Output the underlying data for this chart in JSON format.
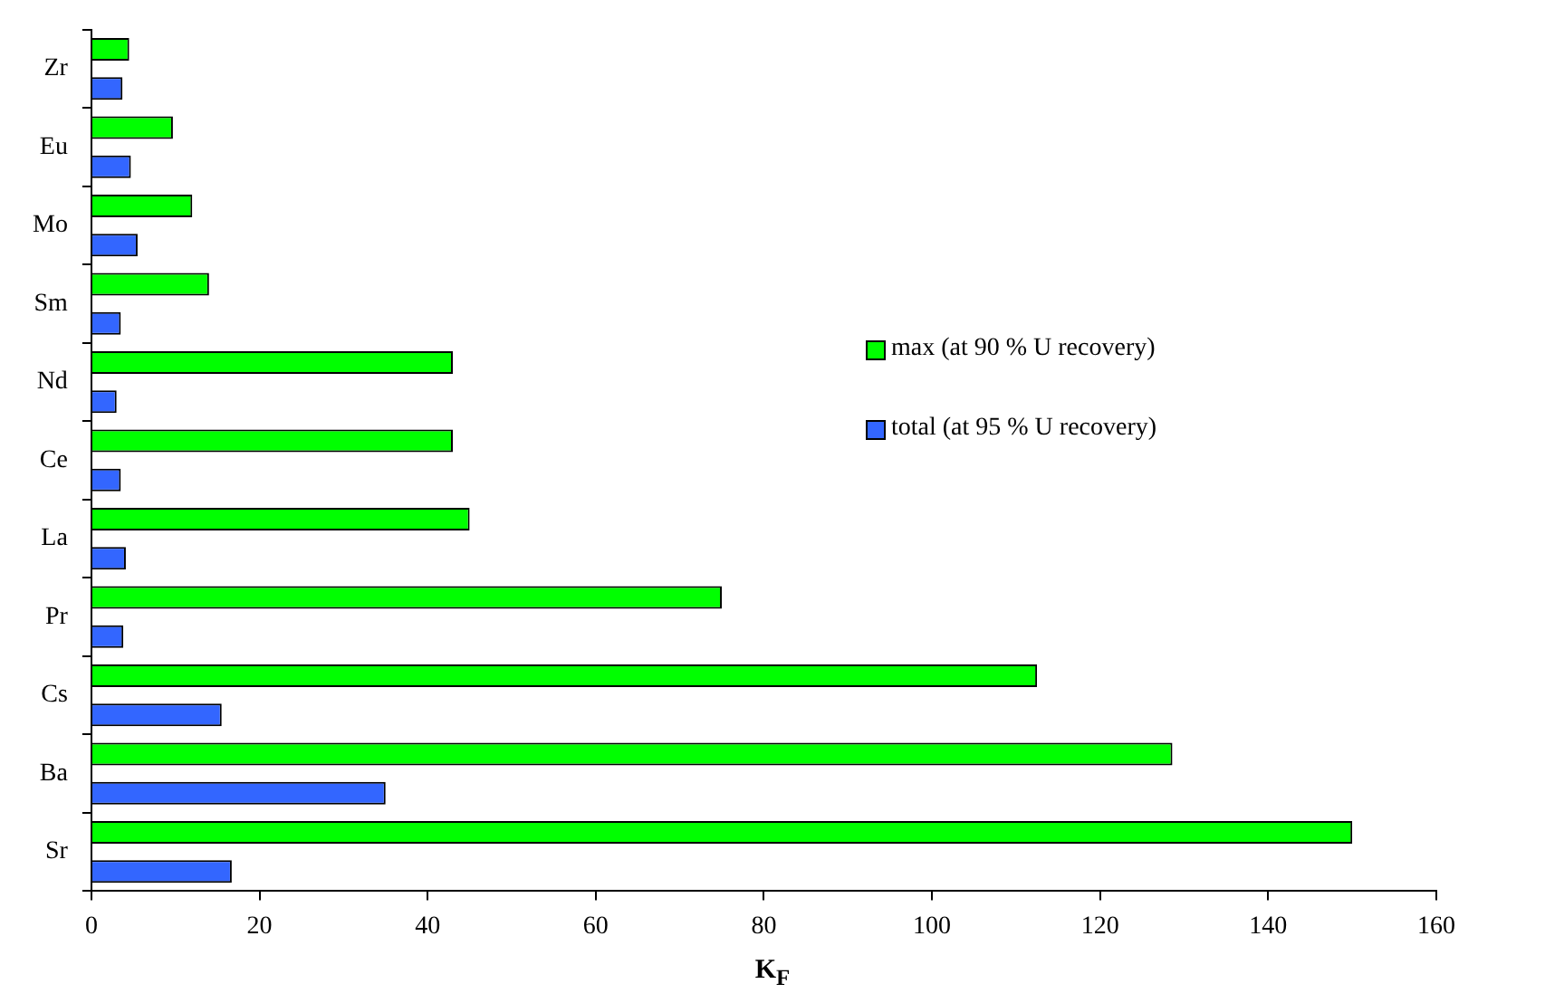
{
  "chart_data": {
    "type": "bar",
    "orientation": "horizontal",
    "xlabel": "K$_{F}$",
    "categories": [
      "Zr",
      "Eu",
      "Mo",
      "Sm",
      "Nd",
      "Ce",
      "La",
      "Pr",
      "Cs",
      "Ba",
      "Sr"
    ],
    "series": [
      {
        "name": "max (at 90 % U recovery)",
        "color": "#00ff00",
        "values": [
          4.5,
          9.7,
          12,
          14,
          43,
          43,
          45,
          75,
          112.5,
          128.6,
          150
        ]
      },
      {
        "name": "total (at 95 % U recovery)",
        "color": "#3366ff",
        "values": [
          3.7,
          4.7,
          5.5,
          3.5,
          3,
          3.5,
          4.1,
          3.8,
          15.5,
          35,
          16.7
        ]
      }
    ],
    "xlim": [
      0,
      160
    ],
    "xticks": [
      0,
      20,
      40,
      60,
      80,
      100,
      120,
      140,
      160
    ],
    "grid": false,
    "legend": "right"
  }
}
